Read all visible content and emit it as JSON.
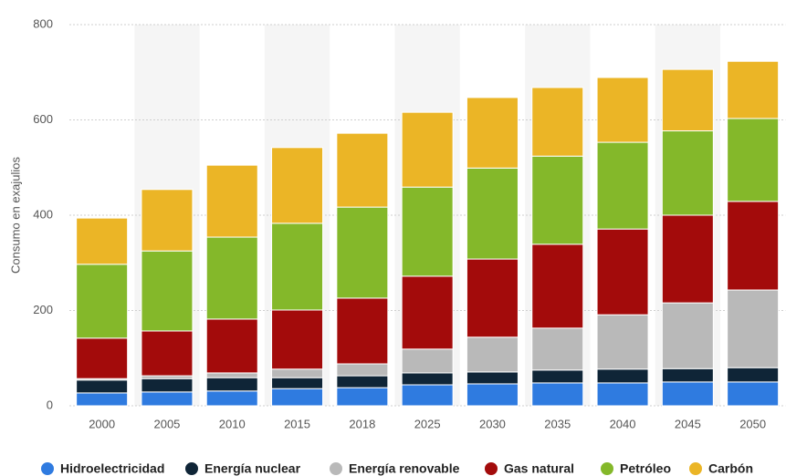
{
  "chart_data": {
    "type": "stacked-bar",
    "y_label": "Consumo en exajulios",
    "categories": [
      "2000",
      "2005",
      "2010",
      "2015",
      "2018",
      "2025",
      "2030",
      "2035",
      "2040",
      "2045",
      "2050"
    ],
    "series": [
      {
        "name": "Hidroelectricidad",
        "color": "#2f7be0",
        "values": [
          27,
          29,
          31,
          36,
          38,
          44,
          46,
          48,
          48,
          50,
          50
        ]
      },
      {
        "name": "Energía nuclear",
        "color": "#0f2537",
        "values": [
          27,
          28,
          28,
          23,
          25,
          25,
          25,
          27,
          29,
          28,
          30
        ]
      },
      {
        "name": "Energía renovable",
        "color": "#b9b9b9",
        "values": [
          3,
          6,
          10,
          18,
          25,
          50,
          73,
          88,
          114,
          138,
          163
        ]
      },
      {
        "name": "Gas natural",
        "color": "#a30b0b",
        "values": [
          85,
          94,
          113,
          124,
          138,
          153,
          164,
          176,
          180,
          184,
          186
        ]
      },
      {
        "name": "Petróleo",
        "color": "#84b82a",
        "values": [
          155,
          168,
          172,
          182,
          191,
          187,
          191,
          185,
          182,
          177,
          174
        ]
      },
      {
        "name": "Carbón",
        "color": "#ebb526",
        "values": [
          97,
          129,
          151,
          159,
          155,
          157,
          148,
          144,
          136,
          129,
          120
        ]
      }
    ],
    "ylim": [
      0,
      800
    ],
    "yticks": [
      0,
      200,
      400,
      600,
      800
    ],
    "grid": true,
    "legend": "bottom"
  }
}
